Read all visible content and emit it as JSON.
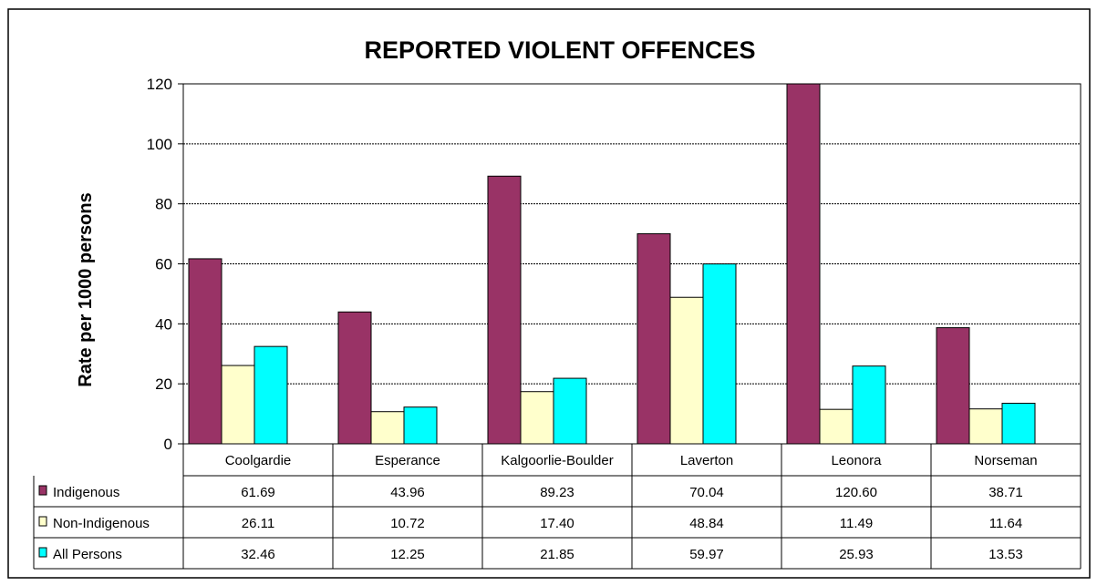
{
  "chart_data": {
    "type": "bar",
    "title": "REPORTED VIOLENT OFFENCES",
    "xlabel": "",
    "ylabel": "Rate per 1000 persons",
    "ylim": [
      0,
      120
    ],
    "yticks": [
      0,
      20,
      40,
      60,
      80,
      100,
      120
    ],
    "grid": true,
    "legend": "data table rows (left)",
    "categories": [
      "Coolgardie",
      "Esperance",
      "Kalgoorlie-Boulder",
      "Laverton",
      "Leonora",
      "Norseman"
    ],
    "series": [
      {
        "name": "Indigenous",
        "color": "#993366",
        "values": [
          61.69,
          43.96,
          89.23,
          70.04,
          120.6,
          38.71
        ],
        "labels": [
          "61.69",
          "43.96",
          "89.23",
          "70.04",
          "120.60",
          "38.71"
        ]
      },
      {
        "name": "Non-Indigenous",
        "color": "#FFFFCC",
        "values": [
          26.11,
          10.72,
          17.4,
          48.84,
          11.49,
          11.64
        ],
        "labels": [
          "26.11",
          "10.72",
          "17.40",
          "48.84",
          "11.49",
          "11.64"
        ]
      },
      {
        "name": "All Persons",
        "color": "#00FFFF",
        "values": [
          32.46,
          12.25,
          21.85,
          59.97,
          25.93,
          13.53
        ],
        "labels": [
          "32.46",
          "12.25",
          "21.85",
          "59.97",
          "25.93",
          "13.53"
        ]
      }
    ]
  }
}
